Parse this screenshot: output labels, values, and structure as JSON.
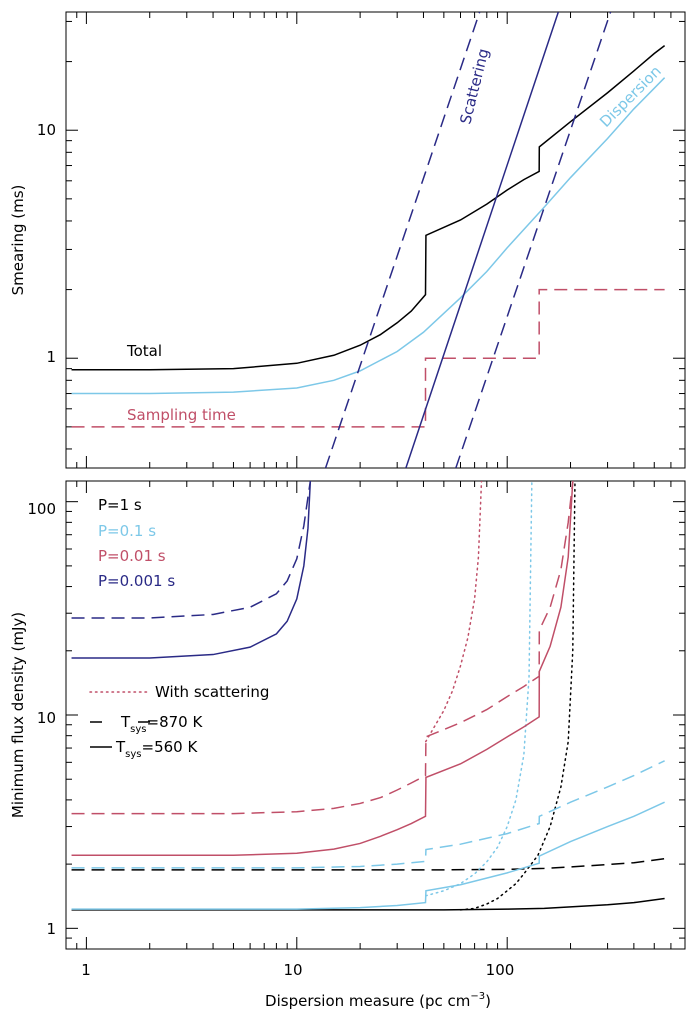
{
  "colors": {
    "total": "#000000",
    "dispersion": "#7dc8e8",
    "sampling": "#c04f68",
    "scattering": "#2a2a86",
    "p1": "#000000",
    "p01": "#7dc8e8",
    "p001": "#c04f68",
    "p0001": "#2a2a86"
  },
  "chart_data": [
    {
      "type": "line",
      "xlog": true,
      "ylog": true,
      "xlim": [
        0.8,
        700
      ],
      "ylim": [
        0.33,
        33
      ],
      "ylabel": "Smearing (ms)",
      "y_ticklabels": [
        "1",
        "10"
      ],
      "series": [
        {
          "name": "Total",
          "style": "solid",
          "color": "#000000",
          "x": [
            0.85,
            2,
            5,
            10,
            15,
            20,
            25,
            30,
            35,
            40.9,
            41.1,
            60,
            80,
            100,
            120,
            141.9,
            142.1,
            200,
            300,
            400,
            500,
            560
          ],
          "y": [
            0.89,
            0.89,
            0.9,
            0.95,
            1.03,
            1.14,
            1.27,
            1.43,
            1.61,
            1.9,
            3.46,
            4.04,
            4.74,
            5.47,
            6.07,
            6.6,
            8.45,
            10.9,
            14.6,
            18.2,
            21.7,
            23.5
          ]
        },
        {
          "name": "Dispersion",
          "style": "solid",
          "color": "#7dc8e8",
          "x": [
            0.85,
            2,
            5,
            10,
            15,
            20,
            30,
            40,
            60,
            80,
            100,
            150,
            200,
            300,
            400,
            560
          ],
          "y": [
            0.7,
            0.7,
            0.71,
            0.74,
            0.8,
            0.88,
            1.07,
            1.3,
            1.84,
            2.4,
            3.05,
            4.6,
            6.2,
            9.2,
            12.4,
            17.0
          ]
        },
        {
          "name": "Sampling time",
          "style": "dashed",
          "color": "#c04f68",
          "x": [
            0.85,
            40.9,
            40.9,
            141.9,
            141.9,
            560
          ],
          "y": [
            0.5,
            0.5,
            1.0,
            1.0,
            2.0,
            2.0
          ]
        },
        {
          "name": "Scattering",
          "style": "solid",
          "color": "#2a2a86",
          "x": [
            33,
            175
          ],
          "y": [
            0.33,
            33
          ]
        },
        {
          "name": "",
          "style": "dashed",
          "color": "#2a2a86",
          "x": [
            13.7,
            74
          ],
          "y": [
            0.33,
            33
          ]
        },
        {
          "name": "",
          "style": "dashed",
          "color": "#2a2a86",
          "x": [
            57,
            310
          ],
          "y": [
            0.33,
            33
          ]
        }
      ],
      "labels": [
        "Total",
        "Sampling time",
        "Scattering",
        "Dispersion"
      ]
    },
    {
      "type": "line",
      "xlog": true,
      "ylog": true,
      "xlim": [
        0.8,
        700
      ],
      "ylim": [
        0.8,
        125
      ],
      "xlabel": "Dispersion measure (pc cm",
      "xlabel_sup": "−3",
      "xlabel_close": ")",
      "ylabel": "Minimum flux density (mJy)",
      "x_ticklabels": [
        "1",
        "10",
        "100"
      ],
      "y_ticklabels": [
        "1",
        "10",
        "100"
      ],
      "legend_periods": [
        "P=1 s",
        "P=0.1 s",
        "P=0.01 s",
        "P=0.001 s"
      ],
      "legend_styles": [
        "With scattering",
        "T",
        "sys",
        "=870 K",
        "T",
        "sys",
        "=560 K"
      ],
      "series": [
        {
          "name": "P=1 s",
          "style": "solid",
          "color": "#000000",
          "x": [
            0.85,
            50,
            100,
            150,
            200,
            300,
            400,
            560
          ],
          "y": [
            1.22,
            1.22,
            1.23,
            1.24,
            1.26,
            1.29,
            1.32,
            1.38
          ]
        },
        {
          "name": "P=1 s",
          "style": "dashed",
          "color": "#000000",
          "x": [
            0.85,
            50,
            100,
            150,
            200,
            300,
            400,
            560
          ],
          "y": [
            1.88,
            1.88,
            1.89,
            1.91,
            1.94,
            1.99,
            2.03,
            2.12
          ]
        },
        {
          "name": "P=1 s",
          "style": "dotted",
          "color": "#000000",
          "x": [
            60,
            70,
            80,
            90,
            100,
            110,
            120,
            140,
            160,
            180,
            195,
            205,
            210
          ],
          "y": [
            1.22,
            1.24,
            1.3,
            1.38,
            1.5,
            1.62,
            1.8,
            2.2,
            3.0,
            4.6,
            7.5,
            20,
            125
          ]
        },
        {
          "name": "P=0.1 s",
          "style": "solid",
          "color": "#7dc8e8",
          "x": [
            0.85,
            10,
            20,
            30,
            40.9,
            41.1,
            60,
            100,
            141.9,
            142.1,
            200,
            300,
            400,
            560
          ],
          "y": [
            1.23,
            1.23,
            1.25,
            1.28,
            1.32,
            1.5,
            1.6,
            1.82,
            2.02,
            2.18,
            2.55,
            3.0,
            3.35,
            3.9
          ]
        },
        {
          "name": "P=0.1 s",
          "style": "dashed",
          "color": "#7dc8e8",
          "x": [
            0.85,
            10,
            20,
            30,
            40.9,
            41.1,
            60,
            100,
            141.9,
            142.1,
            200,
            300,
            400,
            560
          ],
          "y": [
            1.92,
            1.92,
            1.95,
            2.0,
            2.06,
            2.34,
            2.48,
            2.78,
            3.1,
            3.35,
            3.9,
            4.6,
            5.2,
            6.1
          ]
        },
        {
          "name": "P=0.1 s",
          "style": "dotted",
          "color": "#7dc8e8",
          "x": [
            41,
            50,
            60,
            70,
            80,
            90,
            100,
            110,
            120,
            127,
            131
          ],
          "y": [
            1.42,
            1.5,
            1.62,
            1.8,
            2.05,
            2.4,
            3.0,
            4.0,
            6.5,
            15,
            125
          ]
        },
        {
          "name": "P=0.01 s",
          "style": "solid",
          "color": "#c04f68",
          "x": [
            0.85,
            5,
            10,
            15,
            20,
            25,
            30,
            35,
            40.9,
            41.1,
            60,
            80,
            100,
            120,
            141.9,
            142.1,
            160,
            180,
            195,
            205
          ],
          "y": [
            2.2,
            2.2,
            2.25,
            2.35,
            2.5,
            2.7,
            2.9,
            3.1,
            3.35,
            5.1,
            5.9,
            6.9,
            7.9,
            8.8,
            9.8,
            16,
            21,
            32,
            55,
            125
          ]
        },
        {
          "name": "P=0.01 s",
          "style": "dashed",
          "color": "#c04f68",
          "x": [
            0.85,
            5,
            10,
            15,
            20,
            25,
            30,
            35,
            40.9,
            41.1,
            60,
            80,
            100,
            120,
            141.9,
            142.1,
            160,
            180,
            195,
            205
          ],
          "y": [
            3.45,
            3.45,
            3.52,
            3.65,
            3.85,
            4.1,
            4.45,
            4.8,
            5.2,
            7.9,
            9.2,
            10.6,
            12.2,
            13.6,
            15.2,
            25,
            32,
            48,
            80,
            125
          ]
        },
        {
          "name": "P=0.01 s",
          "style": "dotted",
          "color": "#c04f68",
          "x": [
            41,
            50,
            55,
            60,
            65,
            70,
            73,
            75.5
          ],
          "y": [
            7.5,
            10.5,
            13,
            17,
            23,
            35,
            55,
            125
          ]
        },
        {
          "name": "P=0.001 s",
          "style": "solid",
          "color": "#2a2a86",
          "x": [
            0.85,
            2,
            4,
            6,
            8,
            9,
            10,
            10.8,
            11.3,
            11.6
          ],
          "y": [
            18.5,
            18.5,
            19.2,
            20.8,
            24,
            27.5,
            35,
            50,
            75,
            125
          ]
        },
        {
          "name": "P=0.001 s",
          "style": "dashed",
          "color": "#2a2a86",
          "x": [
            0.85,
            2,
            4,
            6,
            8,
            9,
            10,
            10.8,
            11.3,
            11.6
          ],
          "y": [
            28.5,
            28.5,
            29.6,
            32,
            37,
            42.5,
            54,
            77,
            105,
            125
          ]
        }
      ]
    }
  ]
}
